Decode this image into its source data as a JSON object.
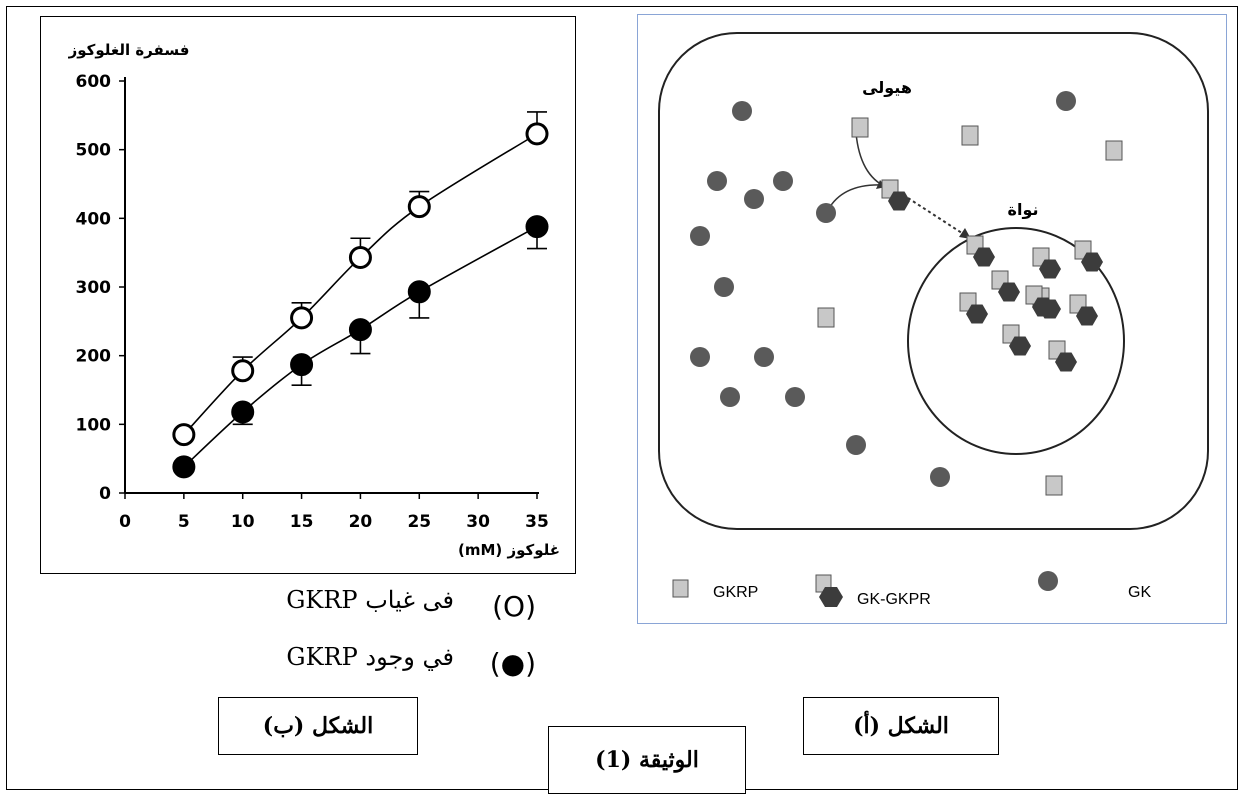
{
  "chart_data": {
    "type": "line",
    "title": "",
    "ylabel": "فسفرة الغلوكوز",
    "xlabel": "غلوكوز (mM)",
    "x_ticks": [
      0,
      5,
      10,
      15,
      20,
      25,
      30,
      35
    ],
    "y_ticks": [
      0,
      100,
      200,
      300,
      400,
      500,
      600
    ],
    "xlim": [
      0,
      35
    ],
    "ylim": [
      0,
      600
    ],
    "grid": false,
    "series": [
      {
        "marker": "open-circle",
        "x": [
          5,
          10,
          15,
          20,
          25,
          35
        ],
        "y": [
          85,
          178,
          255,
          343,
          417,
          523
        ],
        "error": [
          0,
          20,
          22,
          28,
          22,
          32
        ]
      },
      {
        "marker": "filled-circle",
        "x": [
          5,
          10,
          15,
          20,
          25,
          35
        ],
        "y": [
          38,
          118,
          187,
          238,
          293,
          388
        ],
        "error": [
          0,
          18,
          30,
          35,
          38,
          32
        ]
      }
    ]
  },
  "legend": {
    "absent_label": "فى غياب GKRP",
    "absent_symbol": "(O)",
    "present_label": "في وجود GKRP",
    "present_symbol": "(●)"
  },
  "captions": {
    "figure_b": "الشكل (ب)",
    "figure_a": "الشكل (أ)",
    "document": "الوثيقة (1)"
  },
  "cell_diagram": {
    "cytoplasm_label": "هيولى",
    "nucleus_label": "نواة",
    "legend": {
      "gkrp": "GKRP",
      "complex": "GK-GKPR",
      "gk": "GK"
    },
    "colors": {
      "gk": "#5a5a5a",
      "gkrp_fill": "#c8c8c8",
      "gkrp_stroke": "#555555",
      "complex": "#3c3c3c"
    }
  }
}
